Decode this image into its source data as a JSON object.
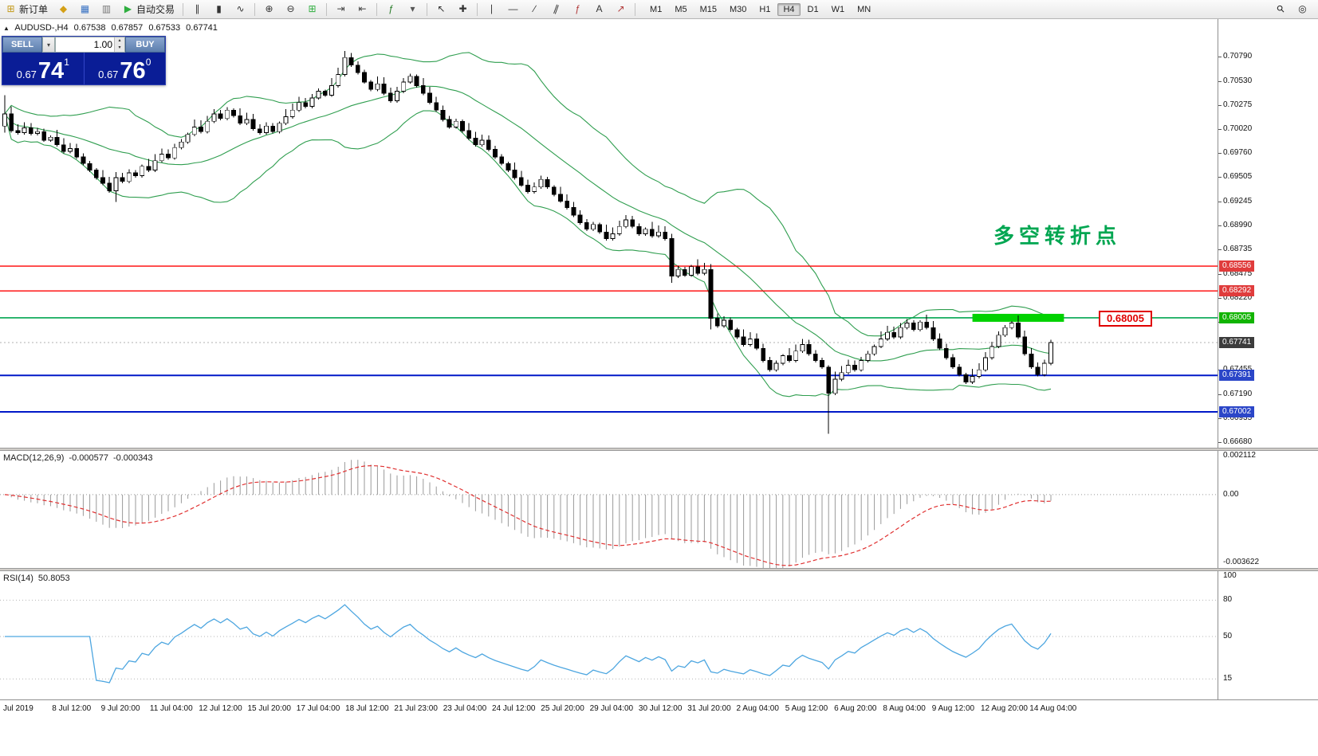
{
  "toolbar": {
    "buttons": [
      {
        "name": "new-order-button",
        "icon": "⊞",
        "icon_color": "#c49a1a",
        "label": "新订单"
      },
      {
        "name": "market-watch-icon",
        "icon": "◆",
        "icon_color": "#d4a017"
      },
      {
        "name": "charts-icon",
        "icon": "▦",
        "icon_color": "#3b74c4"
      },
      {
        "name": "terminal-icon",
        "icon": "▥",
        "icon_color": "#777777"
      },
      {
        "name": "auto-trading-button",
        "icon": "▶",
        "icon_color": "#2fae3f",
        "label": "自动交易"
      },
      {
        "sep": true
      },
      {
        "name": "bar-chart-type-icon",
        "icon": "∥",
        "icon_color": "#333333"
      },
      {
        "name": "candlestick-type-icon",
        "icon": "▮",
        "icon_color": "#333333"
      },
      {
        "name": "line-chart-type-icon",
        "icon": "∿",
        "icon_color": "#333333"
      },
      {
        "sep": true
      },
      {
        "name": "zoom-in-icon",
        "icon": "⊕",
        "icon_color": "#333333"
      },
      {
        "name": "zoom-out-icon",
        "icon": "⊖",
        "icon_color": "#333333"
      },
      {
        "name": "tile-windows-icon",
        "icon": "⊞",
        "icon_color": "#2fae3f"
      },
      {
        "sep": true
      },
      {
        "name": "auto-scroll-icon",
        "icon": "⇥",
        "icon_color": "#444444"
      },
      {
        "name": "chart-shift-icon",
        "icon": "⇤",
        "icon_color": "#444444"
      },
      {
        "sep": true
      },
      {
        "name": "indicators-icon",
        "icon": "ƒ",
        "icon_color": "#2a7d2a"
      },
      {
        "name": "dropdown-arrow",
        "icon": "▾",
        "icon_color": "#555555"
      },
      {
        "sep": true
      },
      {
        "name": "cursor-icon",
        "icon": "↖",
        "icon_color": "#333333"
      },
      {
        "name": "crosshair-icon",
        "icon": "✚",
        "icon_color": "#333333"
      },
      {
        "sep": true
      },
      {
        "name": "vertical-line-icon",
        "icon": "∣",
        "icon_color": "#333333"
      },
      {
        "name": "horizontal-line-icon",
        "icon": "―",
        "icon_color": "#333333"
      },
      {
        "name": "trendline-icon",
        "icon": "∕",
        "icon_color": "#333333"
      },
      {
        "name": "channel-icon",
        "icon": "∥",
        "icon_color": "#333333",
        "rot": true
      },
      {
        "name": "fibonacci-icon",
        "icon": "ƒ",
        "icon_color": "#b23b3b"
      },
      {
        "name": "text-icon",
        "icon": "A",
        "icon_color": "#333333"
      },
      {
        "name": "arrows-icon",
        "icon": "↗",
        "icon_color": "#b23b3b"
      },
      {
        "sep": true
      }
    ],
    "timeframes": [
      "M1",
      "M5",
      "M15",
      "M30",
      "H1",
      "H4",
      "D1",
      "W1",
      "MN"
    ],
    "active_timeframe": "H4",
    "right_icons": [
      {
        "name": "search-icon",
        "icon": "⚲",
        "rot": "lens"
      },
      {
        "name": "target-icon",
        "icon": "◎"
      }
    ]
  },
  "icons": {
    "dropdown": "▾",
    "spinner_up": "▴",
    "spinner_down": "▾"
  },
  "chart_header": {
    "collapse_icon": "▲",
    "symbol_title": "AUDUSD-,H4",
    "open": "0.67538",
    "high": "0.67857",
    "low": "0.67533",
    "close": "0.67741"
  },
  "trade_panel": {
    "sell_label": "SELL",
    "buy_label": "BUY",
    "volume": "1.00",
    "sell_price": {
      "prefix": "0.67",
      "big": "74",
      "sup": "1"
    },
    "buy_price": {
      "prefix": "0.67",
      "big": "76",
      "sup": "0"
    }
  },
  "annotation": {
    "text": "多空转折点",
    "color": "#00a651"
  },
  "levels": {
    "resistance": [
      {
        "price": 0.68556,
        "color": "#ff0000"
      },
      {
        "price": 0.68292,
        "color": "#ff0000"
      }
    ],
    "pivot": {
      "price": 0.68005,
      "color": "#00a550",
      "label": "0.68005"
    },
    "support": [
      {
        "price": 0.67391,
        "color": "#0018c8"
      },
      {
        "price": 0.67002,
        "color": "#0018c8"
      }
    ],
    "current_price": {
      "price": 0.67741
    },
    "zone": {
      "from_bar": 148,
      "to_bar": 162,
      "price": 0.68005,
      "color": "#00d200"
    }
  },
  "price_scale": {
    "ticks": [
      "0.70790",
      "0.70530",
      "0.70275",
      "0.70020",
      "0.69760",
      "0.69505",
      "0.69245",
      "0.68990",
      "0.68735",
      "0.68475",
      "0.68220",
      "0.67965",
      "0.67455",
      "0.67190",
      "0.66935",
      "0.66680"
    ],
    "badges": [
      {
        "value": "0.68556",
        "bg": "#e03c3c"
      },
      {
        "value": "0.68292",
        "bg": "#e03c3c"
      },
      {
        "value": "0.68005",
        "bg": "#11b400"
      },
      {
        "value": "0.67741",
        "bg": "#3c3c3c"
      },
      {
        "value": "0.67391",
        "bg": "#2b46c8"
      },
      {
        "value": "0.67002",
        "bg": "#2b46c8"
      }
    ]
  },
  "macd": {
    "title": "MACD(12,26,9)",
    "value1": "-0.000577",
    "value2": "-0.000343",
    "scale": [
      {
        "text": "0.002112",
        "v": 0.002112
      },
      {
        "text": "0.00",
        "v": 0
      },
      {
        "text": "-0.003622",
        "v": -0.003622
      }
    ]
  },
  "rsi": {
    "title": "RSI(14)",
    "value": "50.8053",
    "scale": [
      100,
      80,
      50,
      15
    ],
    "gridlines": [
      80,
      50,
      15
    ]
  },
  "time_axis": [
    "Jul 2019",
    "8 Jul 12:00",
    "9 Jul 20:00",
    "11 Jul 04:00",
    "12 Jul 12:00",
    "15 Jul 20:00",
    "17 Jul 04:00",
    "18 Jul 12:00",
    "21 Jul 23:00",
    "23 Jul 04:00",
    "24 Jul 12:00",
    "25 Jul 20:00",
    "29 Jul 04:00",
    "30 Jul 12:00",
    "31 Jul 20:00",
    "2 Aug 04:00",
    "5 Aug 12:00",
    "6 Aug 20:00",
    "8 Aug 04:00",
    "9 Aug 12:00",
    "12 Aug 20:00",
    "14 Aug 04:00"
  ],
  "chart_data": {
    "type": "candlestick",
    "symbol": "AUDUSD",
    "period": "H4",
    "price_scale_factor": 0.0001,
    "y_range": [
      0.6662,
      0.7119
    ],
    "closes_pips": [
      7018,
      7000,
      6998,
      7003,
      6997,
      6999,
      6990,
      6993,
      6985,
      6978,
      6981,
      6972,
      6965,
      6958,
      6950,
      6944,
      6936,
      6950,
      6946,
      6955,
      6952,
      6962,
      6958,
      6968,
      6975,
      6971,
      6982,
      6988,
      6996,
      7004,
      6999,
      7010,
      7018,
      7013,
      7022,
      7016,
      7008,
      7012,
      7002,
      6998,
      7005,
      6999,
      7008,
      7015,
      7022,
      7030,
      7026,
      7035,
      7042,
      7038,
      7048,
      7060,
      7078,
      7070,
      7062,
      7052,
      7044,
      7050,
      7040,
      7032,
      7042,
      7052,
      7058,
      7048,
      7040,
      7030,
      7022,
      7012,
      7004,
      7010,
      7000,
      6992,
      6985,
      6990,
      6980,
      6972,
      6965,
      6958,
      6950,
      6942,
      6935,
      6940,
      6948,
      6940,
      6932,
      6925,
      6918,
      6910,
      6902,
      6895,
      6900,
      6892,
      6885,
      6890,
      6898,
      6905,
      6898,
      6890,
      6895,
      6888,
      6892,
      6885,
      6845,
      6852,
      6846,
      6855,
      6848,
      6852,
      6800,
      6792,
      6798,
      6788,
      6780,
      6772,
      6778,
      6768,
      6755,
      6745,
      6752,
      6760,
      6755,
      6765,
      6772,
      6762,
      6755,
      6748,
      6720,
      6735,
      6742,
      6750,
      6745,
      6755,
      6762,
      6770,
      6778,
      6785,
      6780,
      6790,
      6795,
      6788,
      6796,
      6790,
      6778,
      6768,
      6758,
      6748,
      6740,
      6732,
      6738,
      6745,
      6758,
      6770,
      6782,
      6790,
      6795,
      6780,
      6762,
      6748,
      6740,
      6752,
      6774
    ],
    "overrides": {
      "0": {
        "open": 7005,
        "high": 7038,
        "low": 6998
      },
      "17": {
        "low": 6924
      },
      "52": {
        "high": 7085
      },
      "102": {
        "low": 6838
      },
      "108": {
        "low": 6788
      },
      "126": {
        "low": 6677
      }
    },
    "bollinger": {
      "period": 20,
      "deviation": 2
    },
    "macd_range": [
      -0.00394,
      0.00235
    ],
    "rsi_range": [
      0,
      100
    ]
  }
}
